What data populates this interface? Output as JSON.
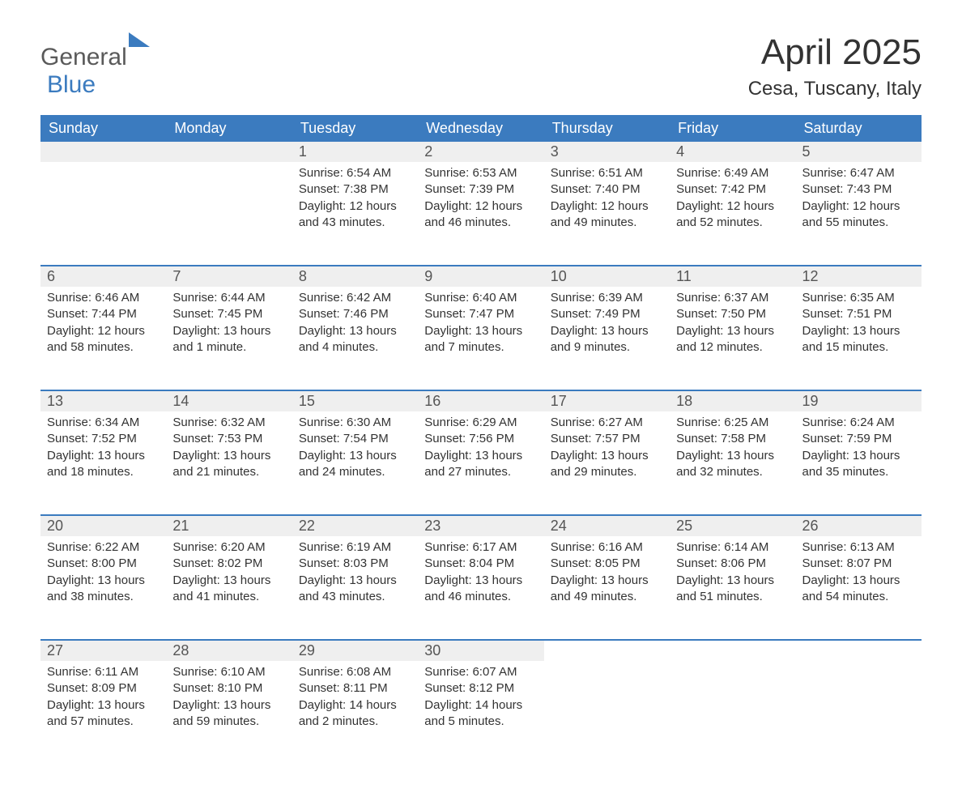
{
  "logo": {
    "text1": "General",
    "text2": "Blue"
  },
  "title": "April 2025",
  "location": "Cesa, Tuscany, Italy",
  "colors": {
    "header_bg": "#3b7bbf",
    "header_text": "#ffffff",
    "daynum_bg": "#efefef",
    "accent": "#3b7bbf",
    "page_bg": "#ffffff",
    "text": "#333333"
  },
  "daynames": [
    "Sunday",
    "Monday",
    "Tuesday",
    "Wednesday",
    "Thursday",
    "Friday",
    "Saturday"
  ],
  "weeks": [
    [
      null,
      null,
      {
        "num": "1",
        "sunrise": "Sunrise: 6:54 AM",
        "sunset": "Sunset: 7:38 PM",
        "daylight": "Daylight: 12 hours and 43 minutes."
      },
      {
        "num": "2",
        "sunrise": "Sunrise: 6:53 AM",
        "sunset": "Sunset: 7:39 PM",
        "daylight": "Daylight: 12 hours and 46 minutes."
      },
      {
        "num": "3",
        "sunrise": "Sunrise: 6:51 AM",
        "sunset": "Sunset: 7:40 PM",
        "daylight": "Daylight: 12 hours and 49 minutes."
      },
      {
        "num": "4",
        "sunrise": "Sunrise: 6:49 AM",
        "sunset": "Sunset: 7:42 PM",
        "daylight": "Daylight: 12 hours and 52 minutes."
      },
      {
        "num": "5",
        "sunrise": "Sunrise: 6:47 AM",
        "sunset": "Sunset: 7:43 PM",
        "daylight": "Daylight: 12 hours and 55 minutes."
      }
    ],
    [
      {
        "num": "6",
        "sunrise": "Sunrise: 6:46 AM",
        "sunset": "Sunset: 7:44 PM",
        "daylight": "Daylight: 12 hours and 58 minutes."
      },
      {
        "num": "7",
        "sunrise": "Sunrise: 6:44 AM",
        "sunset": "Sunset: 7:45 PM",
        "daylight": "Daylight: 13 hours and 1 minute."
      },
      {
        "num": "8",
        "sunrise": "Sunrise: 6:42 AM",
        "sunset": "Sunset: 7:46 PM",
        "daylight": "Daylight: 13 hours and 4 minutes."
      },
      {
        "num": "9",
        "sunrise": "Sunrise: 6:40 AM",
        "sunset": "Sunset: 7:47 PM",
        "daylight": "Daylight: 13 hours and 7 minutes."
      },
      {
        "num": "10",
        "sunrise": "Sunrise: 6:39 AM",
        "sunset": "Sunset: 7:49 PM",
        "daylight": "Daylight: 13 hours and 9 minutes."
      },
      {
        "num": "11",
        "sunrise": "Sunrise: 6:37 AM",
        "sunset": "Sunset: 7:50 PM",
        "daylight": "Daylight: 13 hours and 12 minutes."
      },
      {
        "num": "12",
        "sunrise": "Sunrise: 6:35 AM",
        "sunset": "Sunset: 7:51 PM",
        "daylight": "Daylight: 13 hours and 15 minutes."
      }
    ],
    [
      {
        "num": "13",
        "sunrise": "Sunrise: 6:34 AM",
        "sunset": "Sunset: 7:52 PM",
        "daylight": "Daylight: 13 hours and 18 minutes."
      },
      {
        "num": "14",
        "sunrise": "Sunrise: 6:32 AM",
        "sunset": "Sunset: 7:53 PM",
        "daylight": "Daylight: 13 hours and 21 minutes."
      },
      {
        "num": "15",
        "sunrise": "Sunrise: 6:30 AM",
        "sunset": "Sunset: 7:54 PM",
        "daylight": "Daylight: 13 hours and 24 minutes."
      },
      {
        "num": "16",
        "sunrise": "Sunrise: 6:29 AM",
        "sunset": "Sunset: 7:56 PM",
        "daylight": "Daylight: 13 hours and 27 minutes."
      },
      {
        "num": "17",
        "sunrise": "Sunrise: 6:27 AM",
        "sunset": "Sunset: 7:57 PM",
        "daylight": "Daylight: 13 hours and 29 minutes."
      },
      {
        "num": "18",
        "sunrise": "Sunrise: 6:25 AM",
        "sunset": "Sunset: 7:58 PM",
        "daylight": "Daylight: 13 hours and 32 minutes."
      },
      {
        "num": "19",
        "sunrise": "Sunrise: 6:24 AM",
        "sunset": "Sunset: 7:59 PM",
        "daylight": "Daylight: 13 hours and 35 minutes."
      }
    ],
    [
      {
        "num": "20",
        "sunrise": "Sunrise: 6:22 AM",
        "sunset": "Sunset: 8:00 PM",
        "daylight": "Daylight: 13 hours and 38 minutes."
      },
      {
        "num": "21",
        "sunrise": "Sunrise: 6:20 AM",
        "sunset": "Sunset: 8:02 PM",
        "daylight": "Daylight: 13 hours and 41 minutes."
      },
      {
        "num": "22",
        "sunrise": "Sunrise: 6:19 AM",
        "sunset": "Sunset: 8:03 PM",
        "daylight": "Daylight: 13 hours and 43 minutes."
      },
      {
        "num": "23",
        "sunrise": "Sunrise: 6:17 AM",
        "sunset": "Sunset: 8:04 PM",
        "daylight": "Daylight: 13 hours and 46 minutes."
      },
      {
        "num": "24",
        "sunrise": "Sunrise: 6:16 AM",
        "sunset": "Sunset: 8:05 PM",
        "daylight": "Daylight: 13 hours and 49 minutes."
      },
      {
        "num": "25",
        "sunrise": "Sunrise: 6:14 AM",
        "sunset": "Sunset: 8:06 PM",
        "daylight": "Daylight: 13 hours and 51 minutes."
      },
      {
        "num": "26",
        "sunrise": "Sunrise: 6:13 AM",
        "sunset": "Sunset: 8:07 PM",
        "daylight": "Daylight: 13 hours and 54 minutes."
      }
    ],
    [
      {
        "num": "27",
        "sunrise": "Sunrise: 6:11 AM",
        "sunset": "Sunset: 8:09 PM",
        "daylight": "Daylight: 13 hours and 57 minutes."
      },
      {
        "num": "28",
        "sunrise": "Sunrise: 6:10 AM",
        "sunset": "Sunset: 8:10 PM",
        "daylight": "Daylight: 13 hours and 59 minutes."
      },
      {
        "num": "29",
        "sunrise": "Sunrise: 6:08 AM",
        "sunset": "Sunset: 8:11 PM",
        "daylight": "Daylight: 14 hours and 2 minutes."
      },
      {
        "num": "30",
        "sunrise": "Sunrise: 6:07 AM",
        "sunset": "Sunset: 8:12 PM",
        "daylight": "Daylight: 14 hours and 5 minutes."
      },
      null,
      null,
      null
    ]
  ]
}
